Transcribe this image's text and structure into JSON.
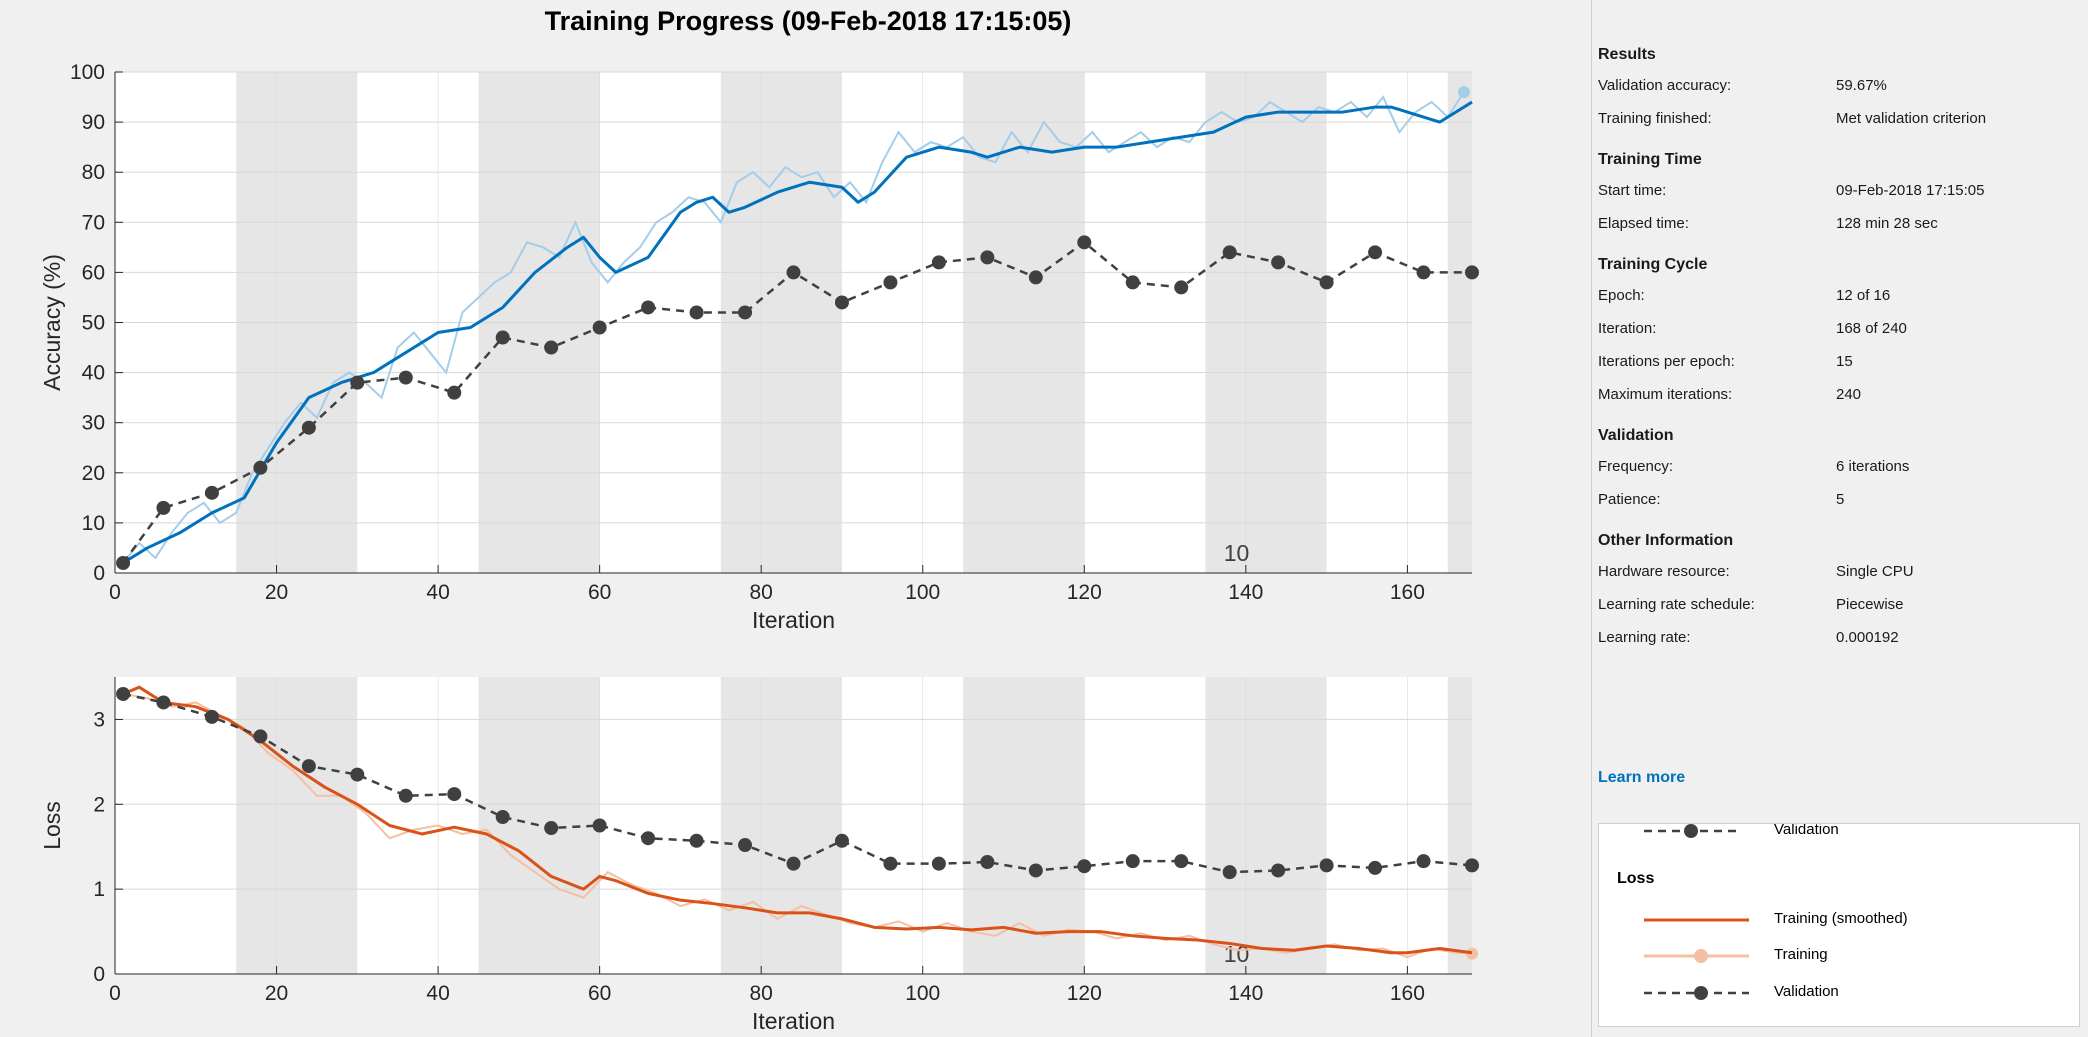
{
  "title": "Training Progress (09-Feb-2018 17:15:05)",
  "colors": {
    "training_smoothed_acc": "#0072bd",
    "training_raw_acc": "#a5cde9",
    "training_smoothed_loss": "#d95319",
    "training_raw_loss": "#f4bfa3",
    "validation": "#404040",
    "epoch_band": "#e6e6e6"
  },
  "chart_data": [
    {
      "type": "line",
      "name": "accuracy",
      "xlabel": "Iteration",
      "ylabel": "Accuracy (%)",
      "xlim": [
        0,
        168
      ],
      "ylim": [
        0,
        100
      ],
      "xticks": [
        0,
        20,
        40,
        60,
        80,
        100,
        120,
        140,
        160
      ],
      "yticks": [
        0,
        10,
        20,
        30,
        40,
        50,
        60,
        70,
        80,
        90,
        100
      ],
      "grid": true,
      "epoch_boundaries": [
        15,
        30,
        45,
        60,
        75,
        90,
        105,
        120,
        135,
        150,
        165
      ],
      "epoch_label": {
        "text": "10",
        "x": 139
      },
      "series": [
        {
          "role": "training_smoothed",
          "x": [
            1,
            4,
            8,
            12,
            16,
            20,
            24,
            28,
            32,
            36,
            40,
            44,
            48,
            52,
            56,
            58,
            60,
            62,
            66,
            70,
            72,
            74,
            76,
            78,
            82,
            86,
            90,
            92,
            94,
            98,
            102,
            106,
            108,
            112,
            116,
            120,
            124,
            128,
            132,
            136,
            140,
            144,
            148,
            152,
            156,
            158,
            160,
            164,
            168
          ],
          "y": [
            2,
            5,
            8,
            12,
            15,
            26,
            35,
            38,
            40,
            44,
            48,
            49,
            53,
            60,
            65,
            67,
            63,
            60,
            63,
            72,
            74,
            75,
            72,
            73,
            76,
            78,
            77,
            74,
            76,
            83,
            85,
            84,
            83,
            85,
            84,
            85,
            85,
            86,
            87,
            88,
            91,
            92,
            92,
            92,
            93,
            93,
            92,
            90,
            94
          ]
        },
        {
          "role": "training_raw",
          "x": [
            1,
            3,
            5,
            7,
            9,
            11,
            13,
            15,
            17,
            19,
            21,
            23,
            25,
            27,
            29,
            31,
            33,
            35,
            37,
            39,
            41,
            43,
            45,
            47,
            49,
            51,
            53,
            55,
            57,
            59,
            61,
            63,
            65,
            67,
            69,
            71,
            73,
            75,
            77,
            79,
            81,
            83,
            85,
            87,
            89,
            91,
            93,
            95,
            97,
            99,
            101,
            103,
            105,
            107,
            109,
            111,
            113,
            115,
            117,
            119,
            121,
            123,
            125,
            127,
            129,
            131,
            133,
            135,
            137,
            139,
            141,
            143,
            145,
            147,
            149,
            151,
            153,
            155,
            157,
            159,
            161,
            163,
            165,
            167
          ],
          "y": [
            2,
            6,
            3,
            8,
            12,
            14,
            10,
            12,
            20,
            25,
            30,
            34,
            31,
            38,
            40,
            38,
            35,
            45,
            48,
            44,
            40,
            52,
            55,
            58,
            60,
            66,
            65,
            63,
            70,
            62,
            58,
            62,
            65,
            70,
            72,
            75,
            74,
            70,
            78,
            80,
            77,
            81,
            79,
            80,
            75,
            78,
            74,
            82,
            88,
            84,
            86,
            85,
            87,
            83,
            82,
            88,
            84,
            90,
            86,
            85,
            88,
            84,
            86,
            88,
            85,
            87,
            86,
            90,
            92,
            90,
            91,
            94,
            92,
            90,
            93,
            92,
            94,
            91,
            95,
            88,
            92,
            94,
            91,
            96
          ]
        },
        {
          "role": "validation",
          "x": [
            1,
            6,
            12,
            18,
            24,
            30,
            36,
            42,
            48,
            54,
            60,
            66,
            72,
            78,
            84,
            90,
            96,
            102,
            108,
            114,
            120,
            126,
            132,
            138,
            144,
            150,
            156,
            162,
            168
          ],
          "y": [
            2,
            13,
            16,
            21,
            29,
            38,
            39,
            36,
            47,
            45,
            49,
            53,
            52,
            52,
            60,
            54,
            58,
            62,
            63,
            59,
            66,
            58,
            57,
            64,
            62,
            58,
            64,
            60,
            60
          ]
        }
      ]
    },
    {
      "type": "line",
      "name": "loss",
      "xlabel": "Iteration",
      "ylabel": "Loss",
      "xlim": [
        0,
        168
      ],
      "ylim": [
        0,
        3.5
      ],
      "xticks": [
        0,
        20,
        40,
        60,
        80,
        100,
        120,
        140,
        160
      ],
      "yticks": [
        0,
        1,
        2,
        3
      ],
      "grid": true,
      "epoch_boundaries": [
        15,
        30,
        45,
        60,
        75,
        90,
        105,
        120,
        135,
        150,
        165
      ],
      "epoch_label": {
        "text": "10",
        "x": 139
      },
      "series": [
        {
          "role": "training_smoothed",
          "x": [
            1,
            3,
            6,
            10,
            14,
            18,
            22,
            26,
            30,
            34,
            38,
            42,
            46,
            50,
            54,
            58,
            60,
            62,
            66,
            70,
            74,
            78,
            82,
            86,
            90,
            94,
            98,
            102,
            106,
            110,
            114,
            118,
            122,
            126,
            130,
            134,
            138,
            142,
            146,
            150,
            154,
            158,
            160,
            164,
            168
          ],
          "y": [
            3.3,
            3.38,
            3.2,
            3.15,
            3.0,
            2.75,
            2.45,
            2.2,
            2.0,
            1.75,
            1.65,
            1.73,
            1.65,
            1.45,
            1.15,
            1.0,
            1.15,
            1.1,
            0.95,
            0.87,
            0.83,
            0.78,
            0.72,
            0.72,
            0.65,
            0.55,
            0.53,
            0.55,
            0.52,
            0.55,
            0.48,
            0.5,
            0.5,
            0.45,
            0.42,
            0.4,
            0.36,
            0.3,
            0.28,
            0.33,
            0.3,
            0.25,
            0.25,
            0.3,
            0.25
          ]
        },
        {
          "role": "training_raw",
          "x": [
            1,
            4,
            7,
            10,
            13,
            16,
            19,
            22,
            25,
            28,
            31,
            34,
            37,
            40,
            43,
            46,
            49,
            52,
            55,
            58,
            61,
            64,
            67,
            70,
            73,
            76,
            79,
            82,
            85,
            88,
            91,
            94,
            97,
            100,
            103,
            106,
            109,
            112,
            115,
            118,
            121,
            124,
            127,
            130,
            133,
            136,
            139,
            142,
            145,
            148,
            151,
            154,
            157,
            160,
            163,
            166,
            168
          ],
          "y": [
            3.3,
            3.25,
            3.15,
            3.2,
            3.05,
            2.9,
            2.6,
            2.4,
            2.1,
            2.1,
            1.9,
            1.6,
            1.7,
            1.75,
            1.65,
            1.7,
            1.4,
            1.2,
            1.0,
            0.9,
            1.2,
            1.05,
            0.95,
            0.8,
            0.88,
            0.75,
            0.85,
            0.65,
            0.8,
            0.7,
            0.6,
            0.55,
            0.62,
            0.5,
            0.6,
            0.5,
            0.45,
            0.6,
            0.45,
            0.52,
            0.5,
            0.42,
            0.48,
            0.4,
            0.45,
            0.35,
            0.28,
            0.3,
            0.25,
            0.3,
            0.35,
            0.28,
            0.3,
            0.2,
            0.3,
            0.25,
            0.24
          ]
        },
        {
          "role": "validation",
          "x": [
            1,
            6,
            12,
            18,
            24,
            30,
            36,
            42,
            48,
            54,
            60,
            66,
            72,
            78,
            84,
            90,
            96,
            102,
            108,
            114,
            120,
            126,
            132,
            138,
            144,
            150,
            156,
            162,
            168
          ],
          "y": [
            3.3,
            3.2,
            3.03,
            2.8,
            2.45,
            2.35,
            2.1,
            2.12,
            1.85,
            1.72,
            1.75,
            1.6,
            1.57,
            1.52,
            1.3,
            1.57,
            1.3,
            1.3,
            1.32,
            1.22,
            1.27,
            1.33,
            1.33,
            1.2,
            1.22,
            1.28,
            1.25,
            1.33,
            1.28
          ]
        }
      ]
    }
  ],
  "panel": {
    "sections": [
      {
        "title": "Results",
        "rows": [
          {
            "key": "Validation accuracy:",
            "value": "59.67%"
          },
          {
            "key": "Training finished:",
            "value": "Met validation criterion"
          }
        ]
      },
      {
        "title": "Training Time",
        "rows": [
          {
            "key": "Start time:",
            "value": "09-Feb-2018 17:15:05"
          },
          {
            "key": "Elapsed time:",
            "value": "128 min 28 sec"
          }
        ]
      },
      {
        "title": "Training Cycle",
        "rows": [
          {
            "key": "Epoch:",
            "value": "12 of 16"
          },
          {
            "key": "Iteration:",
            "value": "168 of 240"
          },
          {
            "key": "Iterations per epoch:",
            "value": "15"
          },
          {
            "key": "Maximum iterations:",
            "value": "240"
          }
        ]
      },
      {
        "title": "Validation",
        "rows": [
          {
            "key": "Frequency:",
            "value": "6 iterations"
          },
          {
            "key": "Patience:",
            "value": "5"
          }
        ]
      },
      {
        "title": "Other Information",
        "rows": [
          {
            "key": "Hardware resource:",
            "value": "Single CPU"
          },
          {
            "key": "Learning rate schedule:",
            "value": "Piecewise"
          },
          {
            "key": "Learning rate:",
            "value": "0.000192"
          }
        ]
      }
    ],
    "learn_more": "Learn more"
  },
  "legend": {
    "top_validation": "Validation",
    "loss_title": "Loss",
    "training_smoothed": "Training (smoothed)",
    "training": "Training",
    "validation": "Validation"
  }
}
